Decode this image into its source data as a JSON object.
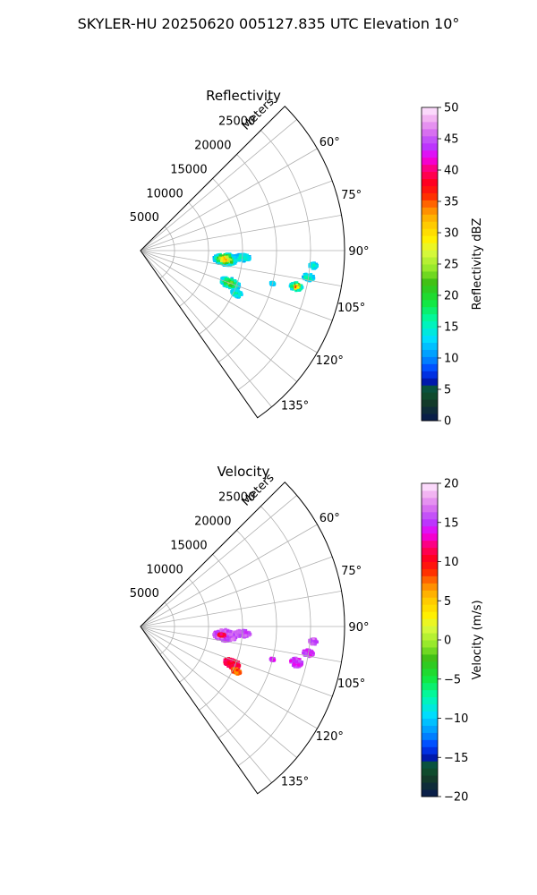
{
  "figure": {
    "suptitle": "SKYLER-HU  20250620  005127.835 UTC Elevation 10°"
  },
  "chart_data": [
    {
      "type": "heatmap",
      "subtype": "polar-sector-ppi",
      "title": "Reflectivity",
      "range_label": "Meters",
      "range_ticks": [
        5000,
        10000,
        15000,
        20000,
        25000
      ],
      "rlim": [
        0,
        30000
      ],
      "azimuth_ticks": [
        "60°",
        "75°",
        "90°",
        "105°",
        "120°",
        "135°"
      ],
      "azimuth_values": [
        60,
        75,
        90,
        105,
        120,
        135
      ],
      "azimuth_range": [
        45,
        145
      ],
      "grid": true,
      "colorbar": {
        "label": "Reflectivity dBZ",
        "range": [
          0,
          50
        ],
        "ticks": [
          "0",
          "5",
          "10",
          "15",
          "20",
          "25",
          "30",
          "35",
          "40",
          "45",
          "50"
        ]
      },
      "echoes": [
        {
          "azimuth": 96,
          "range": 12500,
          "peak": 38,
          "spread_az": 4,
          "spread_r": 1700
        },
        {
          "azimuth": 94,
          "range": 15000,
          "peak": 18,
          "spread_az": 2,
          "spread_r": 1200
        },
        {
          "azimuth": 110,
          "range": 14000,
          "peak": 27,
          "spread_az": 3,
          "spread_r": 1500
        },
        {
          "azimuth": 114,
          "range": 15500,
          "peak": 18,
          "spread_az": 1.8,
          "spread_r": 800
        },
        {
          "azimuth": 103,
          "range": 23500,
          "peak": 37,
          "spread_az": 1.6,
          "spread_r": 900
        },
        {
          "azimuth": 99,
          "range": 25000,
          "peak": 20,
          "spread_az": 1.2,
          "spread_r": 800
        },
        {
          "azimuth": 95,
          "range": 25500,
          "peak": 16,
          "spread_az": 1,
          "spread_r": 600
        },
        {
          "azimuth": 104,
          "range": 20000,
          "peak": 14,
          "spread_az": 0.6,
          "spread_r": 300
        }
      ]
    },
    {
      "type": "heatmap",
      "subtype": "polar-sector-ppi",
      "title": "Velocity",
      "range_label": "Meters",
      "range_ticks": [
        5000,
        10000,
        15000,
        20000,
        25000
      ],
      "rlim": [
        0,
        30000
      ],
      "azimuth_ticks": [
        "60°",
        "75°",
        "90°",
        "105°",
        "120°",
        "135°"
      ],
      "azimuth_values": [
        60,
        75,
        90,
        105,
        120,
        135
      ],
      "azimuth_range": [
        45,
        145
      ],
      "grid": true,
      "colorbar": {
        "label": "Velocity (m/s)",
        "range": [
          -20,
          20
        ],
        "ticks": [
          "−20",
          "−15",
          "−10",
          "−5",
          "0",
          "5",
          "10",
          "15",
          "20"
        ]
      },
      "echoes": [
        {
          "azimuth": 96,
          "range": 12500,
          "velocity": 16,
          "spread_az": 4,
          "spread_r": 1700
        },
        {
          "azimuth": 96,
          "range": 12000,
          "velocity": 11,
          "spread_az": 1,
          "spread_r": 500
        },
        {
          "azimuth": 94,
          "range": 15000,
          "velocity": 16,
          "spread_az": 2,
          "spread_r": 1200
        },
        {
          "azimuth": 112,
          "range": 14500,
          "velocity": 11,
          "spread_az": 2.6,
          "spread_r": 1300
        },
        {
          "azimuth": 115,
          "range": 15500,
          "velocity": 8,
          "spread_az": 1.4,
          "spread_r": 700
        },
        {
          "azimuth": 103,
          "range": 23500,
          "velocity": 15,
          "spread_az": 1.6,
          "spread_r": 900
        },
        {
          "azimuth": 99,
          "range": 25000,
          "velocity": 15,
          "spread_az": 1.2,
          "spread_r": 800
        },
        {
          "azimuth": 95,
          "range": 25500,
          "velocity": 16,
          "spread_az": 1,
          "spread_r": 600
        },
        {
          "azimuth": 104,
          "range": 20000,
          "velocity": 15,
          "spread_az": 0.6,
          "spread_r": 300
        }
      ]
    }
  ]
}
